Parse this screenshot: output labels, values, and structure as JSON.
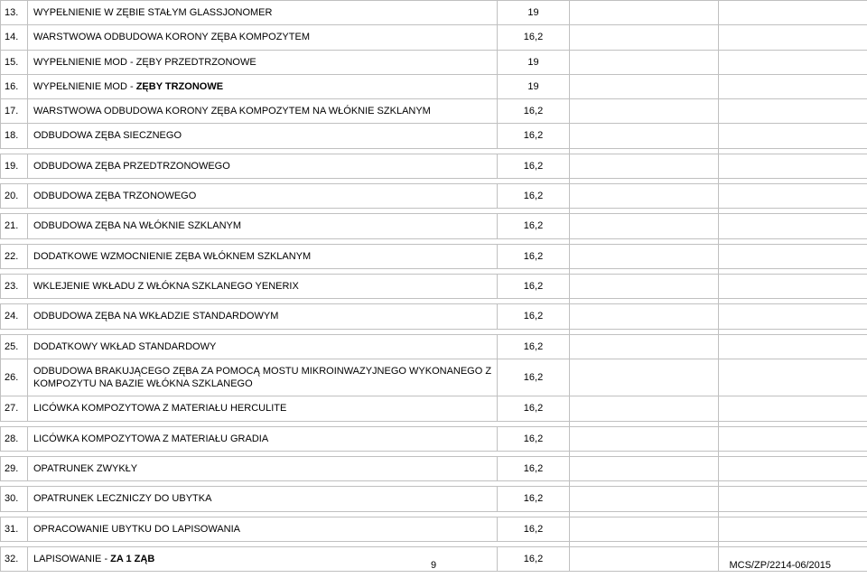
{
  "table": {
    "rows": [
      {
        "num": "13.",
        "desc": "WYPEŁNIENIE W ZĘBIE STAŁYM GLASSJONOMER",
        "val": "19",
        "gap_after": false
      },
      {
        "num": "14.",
        "desc": "WARSTWOWA ODBUDOWA KORONY ZĘBA KOMPOZYTEM",
        "val": "16,2",
        "gap_after": false
      },
      {
        "num": "15.",
        "desc": "WYPEŁNIENIE MOD - ZĘBY PRZEDTRZONOWE",
        "val": "19",
        "gap_after": false
      },
      {
        "num": "16.",
        "desc": "WYPEŁNIENIE MOD - <span class=\"highlight\">ZĘBY TRZONOWE</span>",
        "val": "19",
        "gap_after": false
      },
      {
        "num": "17.",
        "desc": "WARSTWOWA ODBUDOWA KORONY ZĘBA KOMPOZYTEM NA WŁÓKNIE SZKLANYM",
        "val": "16,2",
        "gap_after": false
      },
      {
        "num": "18.",
        "desc": "ODBUDOWA ZĘBA SIECZNEGO",
        "val": "16,2",
        "gap_after": true
      },
      {
        "num": "19.",
        "desc": "ODBUDOWA ZĘBA PRZEDTRZONOWEGO",
        "val": "16,2",
        "gap_after": true
      },
      {
        "num": "20.",
        "desc": "ODBUDOWA ZĘBA TRZONOWEGO",
        "val": "16,2",
        "gap_after": true
      },
      {
        "num": "21.",
        "desc": "ODBUDOWA ZĘBA NA WŁÓKNIE SZKLANYM",
        "val": "16,2",
        "gap_after": true
      },
      {
        "num": "22.",
        "desc": "DODATKOWE WZMOCNIENIE ZĘBA WŁÓKNEM SZKLANYM",
        "val": "16,2",
        "gap_after": true
      },
      {
        "num": "23.",
        "desc": "WKLEJENIE WKŁADU Z WŁÓKNA SZKLANEGO YENERIX",
        "val": "16,2",
        "gap_after": true
      },
      {
        "num": "24.",
        "desc": "ODBUDOWA ZĘBA NA WKŁADZIE STANDARDOWYM",
        "val": "16,2",
        "gap_after": true
      },
      {
        "num": "25.",
        "desc": "DODATKOWY WKŁAD STANDARDOWY",
        "val": "16,2",
        "gap_after": false
      },
      {
        "num": "26.",
        "desc": "ODBUDOWA BRAKUJĄCEGO ZĘBA ZA POMOCĄ MOSTU MIKROINWAZYJNEGO WYKONANEGO Z KOMPOZYTU NA BAZIE WŁÓKNA SZKLANEGO",
        "val": "16,2",
        "gap_after": false
      },
      {
        "num": "27.",
        "desc": "LICÓWKA KOMPOZYTOWA Z MATERIAŁU HERCULITE",
        "val": "16,2",
        "gap_after": true
      },
      {
        "num": "28.",
        "desc": "LICÓWKA KOMPOZYTOWA Z MATERIAŁU GRADIA",
        "val": "16,2",
        "gap_after": true
      },
      {
        "num": "29.",
        "desc": "OPATRUNEK ZWYKŁY",
        "val": "16,2",
        "gap_after": true
      },
      {
        "num": "30.",
        "desc": "OPATRUNEK LECZNICZY DO UBYTKA",
        "val": "16,2",
        "gap_after": true
      },
      {
        "num": "31.",
        "desc": "OPRACOWANIE UBYTKU DO LAPISOWANIA",
        "val": "16,2",
        "gap_after": true
      },
      {
        "num": "32.",
        "desc": "LAPISOWANIE - <span class=\"highlight\">ZA 1 ZĄB</span>",
        "val": "16,2",
        "gap_after": false
      }
    ]
  },
  "footer": {
    "page": "9",
    "doc_id": "MCS/ZP/2214-06/2015"
  }
}
